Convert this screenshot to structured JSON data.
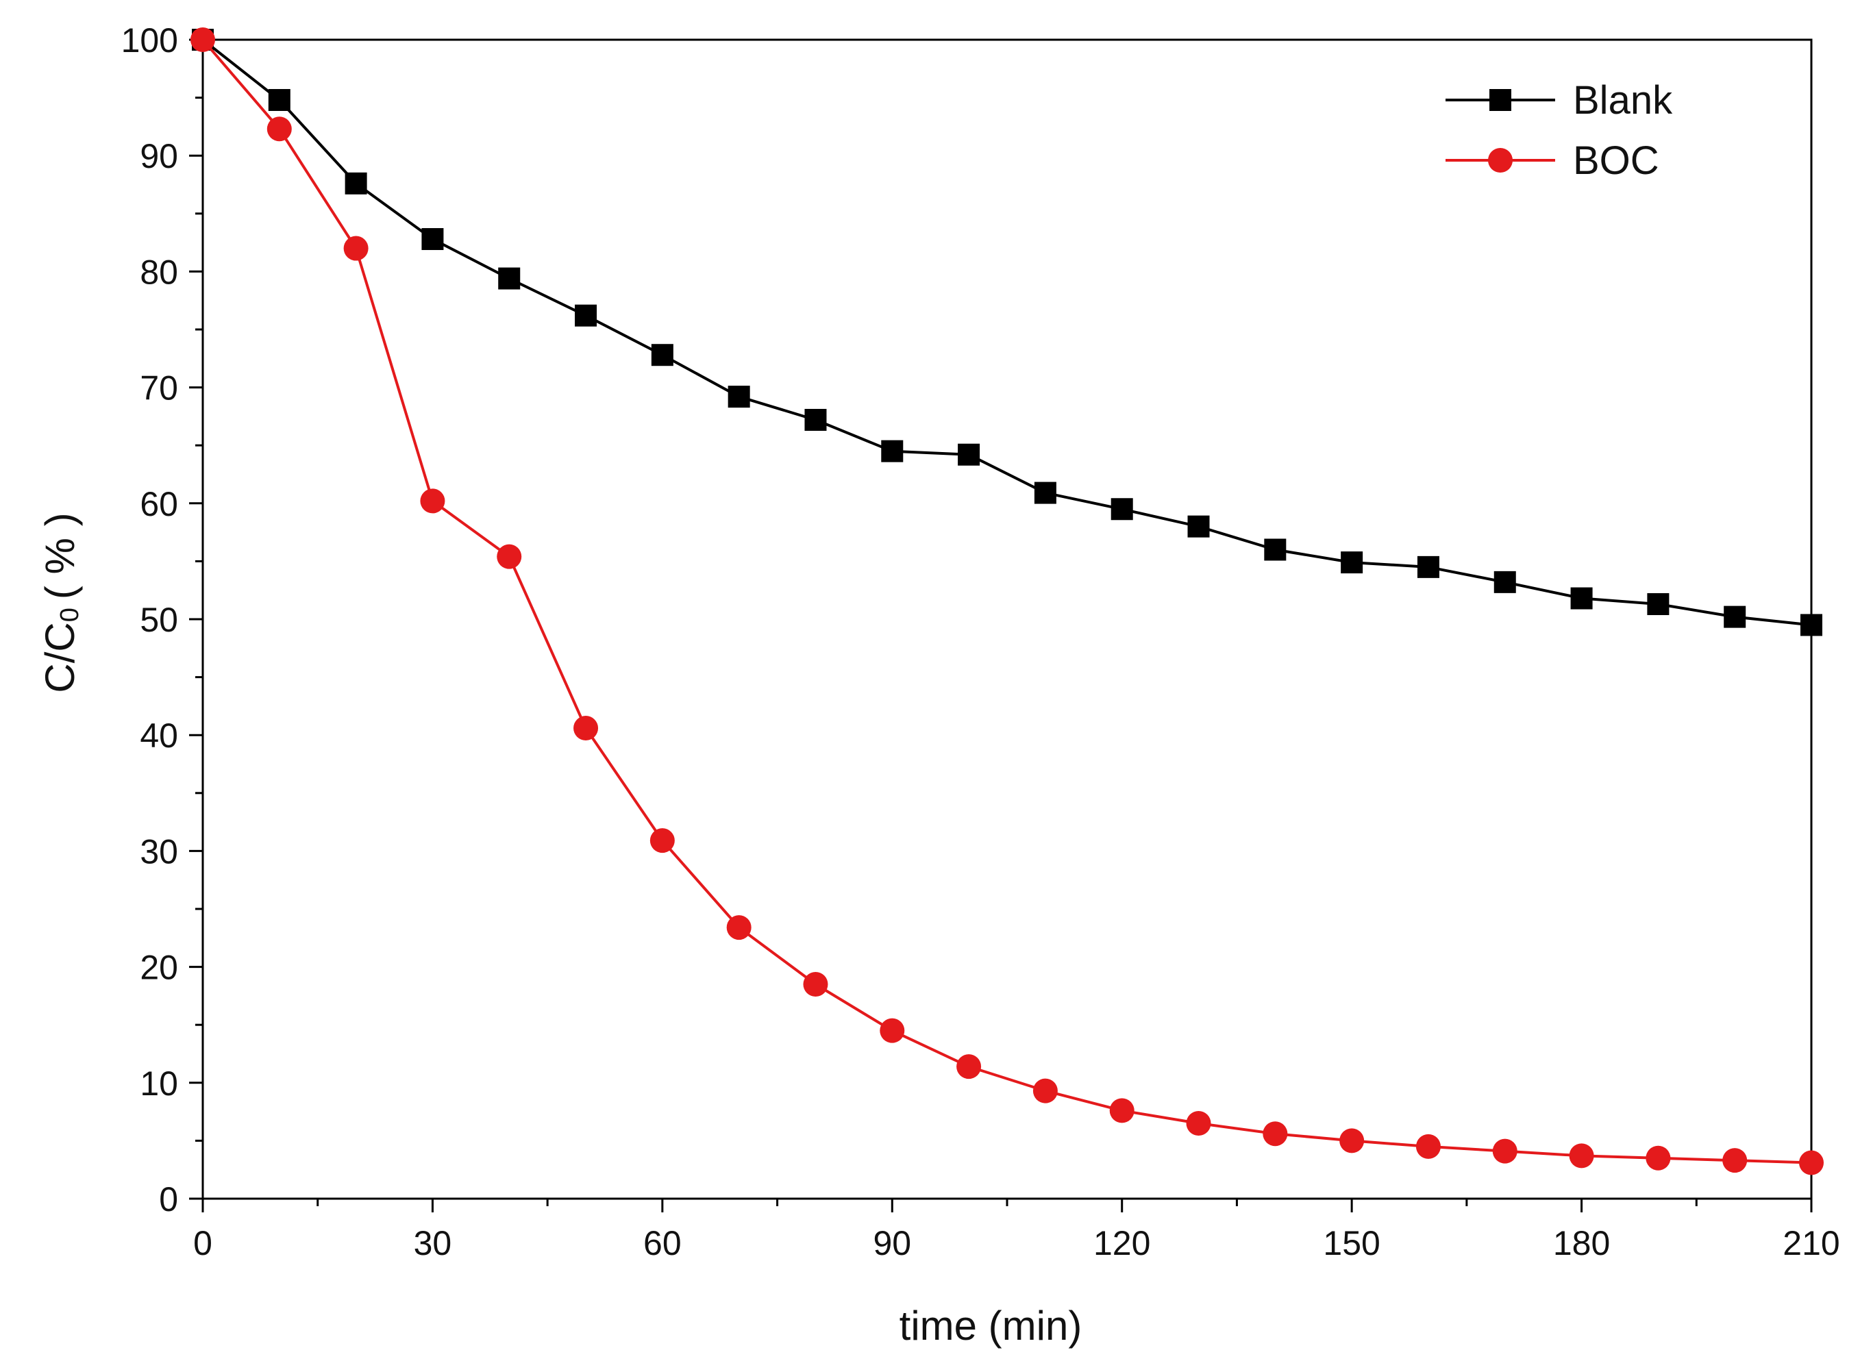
{
  "chart_data": {
    "type": "line",
    "title": "",
    "xlabel": "time (min)",
    "ylabel": {
      "main": "C/C",
      "subscript": "0",
      "unit": "( % )"
    },
    "xlim": [
      0,
      210
    ],
    "ylim": [
      0,
      100
    ],
    "grid": false,
    "legend_position": "top-right",
    "xticks": [
      "0",
      "30",
      "60",
      "90",
      "120",
      "150",
      "180",
      "210"
    ],
    "yticks": [
      "0",
      "10",
      "20",
      "30",
      "40",
      "50",
      "60",
      "70",
      "80",
      "90",
      "100"
    ],
    "x": [
      0,
      10,
      20,
      30,
      40,
      50,
      60,
      70,
      80,
      90,
      100,
      110,
      120,
      130,
      140,
      150,
      160,
      170,
      180,
      190,
      200,
      210
    ],
    "series": [
      {
        "name": "Blank",
        "color": "#000000",
        "marker": "square",
        "values": [
          100,
          94.8,
          87.6,
          82.8,
          79.4,
          76.2,
          72.8,
          69.2,
          67.2,
          64.5,
          64.2,
          60.9,
          59.5,
          58.0,
          56.0,
          54.9,
          54.5,
          53.2,
          51.8,
          51.3,
          50.2,
          49.5
        ]
      },
      {
        "name": "BOC",
        "color": "#e41a1c",
        "marker": "circle",
        "values": [
          100,
          92.3,
          82.0,
          60.2,
          55.4,
          40.6,
          30.9,
          23.4,
          18.5,
          14.5,
          11.4,
          9.3,
          7.6,
          6.5,
          5.6,
          5.0,
          4.5,
          4.1,
          3.7,
          3.5,
          3.3,
          3.1
        ]
      }
    ]
  }
}
